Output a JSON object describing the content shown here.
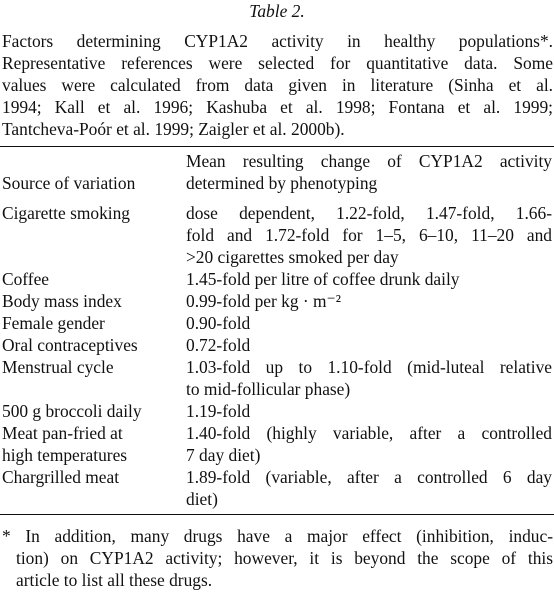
{
  "table_label": "Table 2.",
  "caption_lines": [
    "Factors determining CYP1A2 activity in healthy populations*.",
    "Representative references were selected for quantitative data. Some",
    "values were calculated from data given in literature (Sinha et al.",
    "1994; Kall et al. 1996; Kashuba et al. 1998; Fontana et al. 1999;",
    "Tantcheva-Poór et al. 1999; Zaigler et al. 2000b)."
  ],
  "headers": {
    "source": "Source of variation",
    "effect_lines": [
      "Mean resulting change of CYP1A2 activity",
      "determined by phenotyping"
    ]
  },
  "rows": [
    {
      "source_lines": [
        "Cigarette smoking"
      ],
      "effect_lines": [
        "dose dependent, 1.22-fold, 1.47-fold, 1.66-",
        "fold and 1.72-fold for 1–5, 6–10, 11–20 and",
        ">20 cigarettes smoked per day"
      ]
    },
    {
      "source_lines": [
        "Coffee"
      ],
      "effect_lines": [
        "1.45-fold per litre of coffee drunk daily"
      ]
    },
    {
      "source_lines": [
        "Body mass index"
      ],
      "effect_lines": [
        "0.99-fold per kg · m⁻²"
      ]
    },
    {
      "source_lines": [
        "Female gender"
      ],
      "effect_lines": [
        "0.90-fold"
      ]
    },
    {
      "source_lines": [
        "Oral contraceptives"
      ],
      "effect_lines": [
        "0.72-fold"
      ]
    },
    {
      "source_lines": [
        "Menstrual cycle"
      ],
      "effect_lines": [
        "1.03-fold up to 1.10-fold (mid-luteal relative",
        "to mid-follicular phase)"
      ]
    },
    {
      "source_lines": [
        "500 g broccoli daily"
      ],
      "effect_lines": [
        "1.19-fold"
      ]
    },
    {
      "source_lines": [
        "Meat pan-fried at",
        "high temperatures"
      ],
      "effect_lines": [
        "1.40-fold (highly variable, after a controlled",
        "7 day diet)"
      ]
    },
    {
      "source_lines": [
        "Chargrilled meat"
      ],
      "effect_lines": [
        "1.89-fold (variable, after a controlled 6 day",
        "diet)"
      ]
    }
  ],
  "footnote_lines": [
    "* In addition, many drugs have a major effect (inhibition, induc-",
    "tion) on CYP1A2 activity; however, it is beyond the scope of this",
    "article to list all these drugs."
  ]
}
